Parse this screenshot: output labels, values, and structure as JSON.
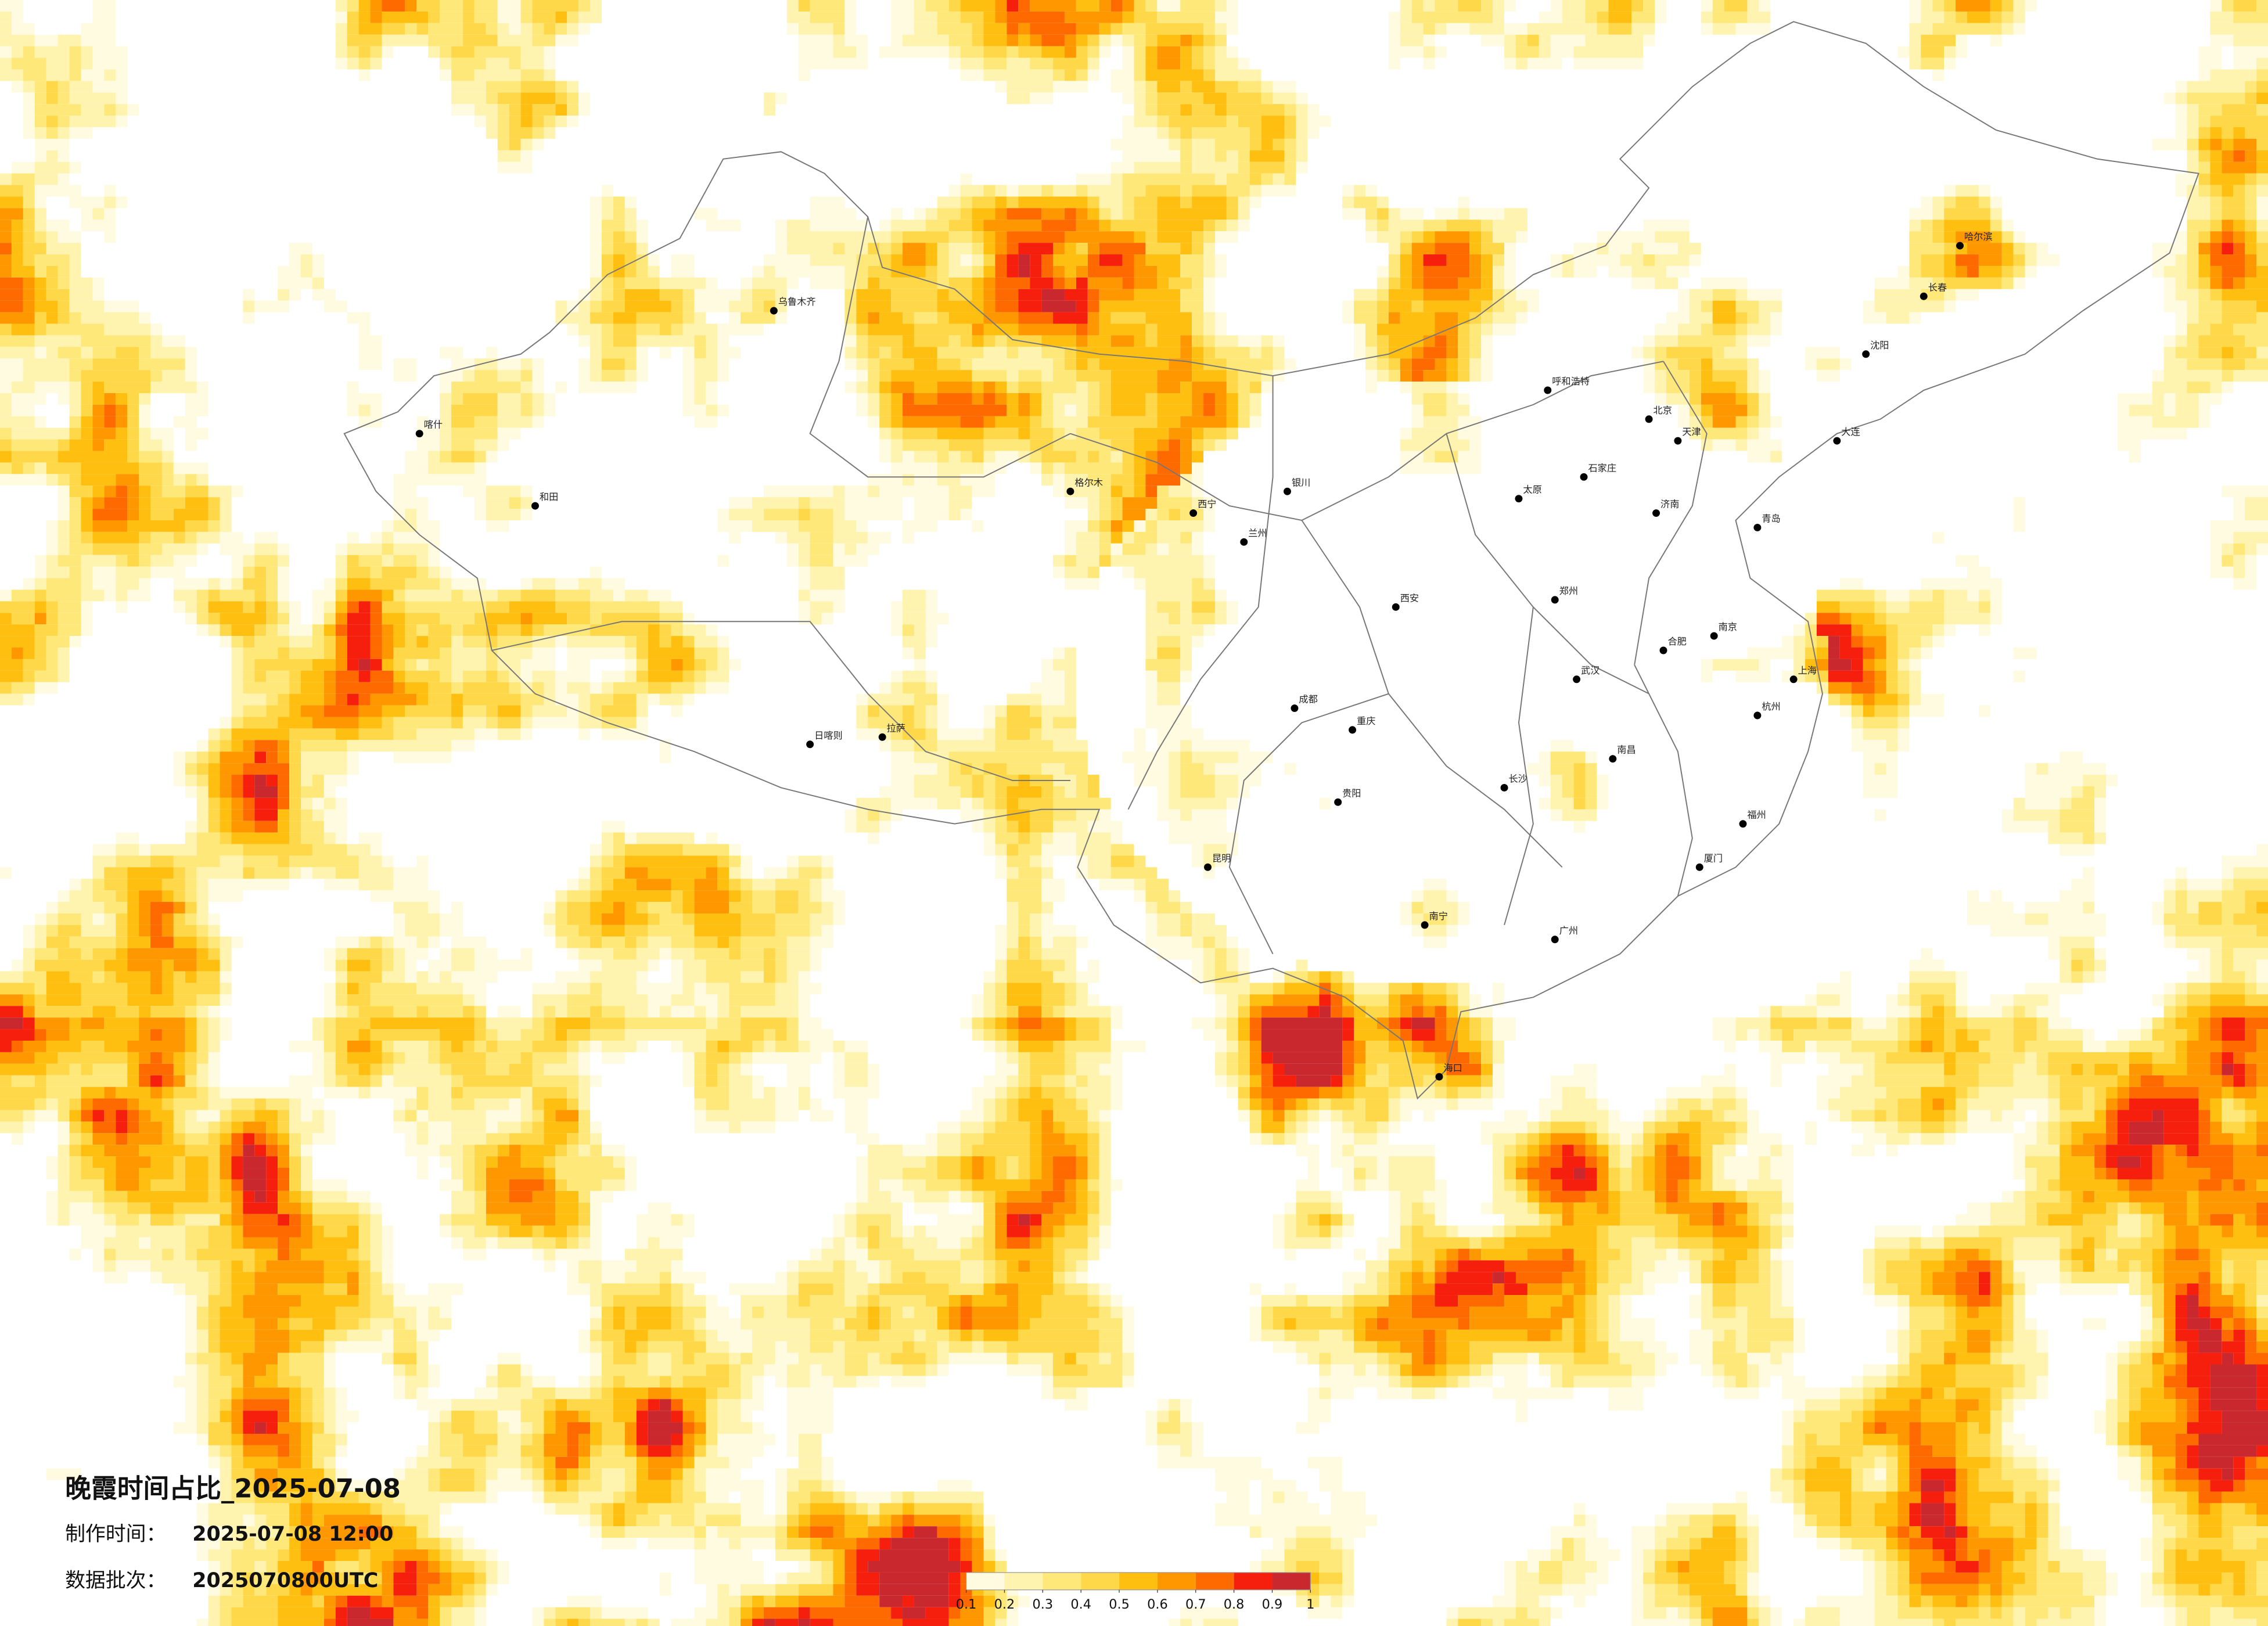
{
  "title": "晚霞时间占比_2025-07-08",
  "produced_label": "制作时间：",
  "produced_value": "2025-07-08 12:00",
  "batch_label": "数据批次：",
  "batch_value": "2025070800UTC",
  "legend": {
    "colors": [
      "#fffbe0",
      "#fff3b0",
      "#ffe87a",
      "#ffd84a",
      "#ffbf10",
      "#ff9800",
      "#ff6a00",
      "#f61e0c",
      "#c8282e"
    ],
    "ticks": [
      0.1,
      0.2,
      0.3,
      0.4,
      0.5,
      0.6,
      0.7,
      0.8,
      0.9,
      1
    ]
  },
  "cities": [
    "哈尔滨",
    "长春",
    "沈阳",
    "北京",
    "天津",
    "呼和浩特",
    "石家庄",
    "太原",
    "济南",
    "郑州",
    "西安",
    "兰州",
    "西宁",
    "银川",
    "乌鲁木齐",
    "拉萨",
    "成都",
    "重庆",
    "贵阳",
    "昆明",
    "南宁",
    "广州",
    "长沙",
    "武汉",
    "南昌",
    "合肥",
    "南京",
    "上海",
    "杭州",
    "福州",
    "海口",
    "喀什",
    "和田",
    "格尔木",
    "日喀则",
    "大连",
    "青岛",
    "厦门"
  ]
}
